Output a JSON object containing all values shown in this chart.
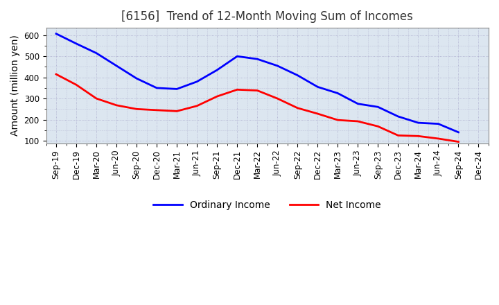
{
  "title": "[6156]  Trend of 12-Month Moving Sum of Incomes",
  "ylabel": "Amount (million yen)",
  "background_color": "#ffffff",
  "plot_bg_color": "#dce6f0",
  "grid_color": "#aaaacc",
  "ylim": [
    88,
    635
  ],
  "yticks": [
    100,
    200,
    300,
    400,
    500,
    600
  ],
  "x_labels": [
    "Sep-19",
    "Dec-19",
    "Mar-20",
    "Jun-20",
    "Sep-20",
    "Dec-20",
    "Mar-21",
    "Jun-21",
    "Sep-21",
    "Dec-21",
    "Mar-22",
    "Jun-22",
    "Sep-22",
    "Dec-22",
    "Mar-23",
    "Jun-23",
    "Sep-23",
    "Dec-23",
    "Mar-24",
    "Jun-24",
    "Sep-24",
    "Dec-24"
  ],
  "ordinary_income": [
    607,
    560,
    515,
    455,
    395,
    350,
    345,
    380,
    435,
    500,
    487,
    455,
    410,
    355,
    325,
    275,
    260,
    215,
    185,
    180,
    140,
    null
  ],
  "net_income": [
    415,
    365,
    300,
    268,
    250,
    245,
    240,
    265,
    310,
    342,
    338,
    300,
    255,
    228,
    198,
    192,
    168,
    125,
    122,
    110,
    95,
    null
  ],
  "ordinary_color": "#0000ff",
  "net_color": "#ff0000",
  "line_width": 2.0,
  "legend_labels": [
    "Ordinary Income",
    "Net Income"
  ],
  "title_fontsize": 12,
  "label_fontsize": 10,
  "tick_fontsize": 8.5
}
